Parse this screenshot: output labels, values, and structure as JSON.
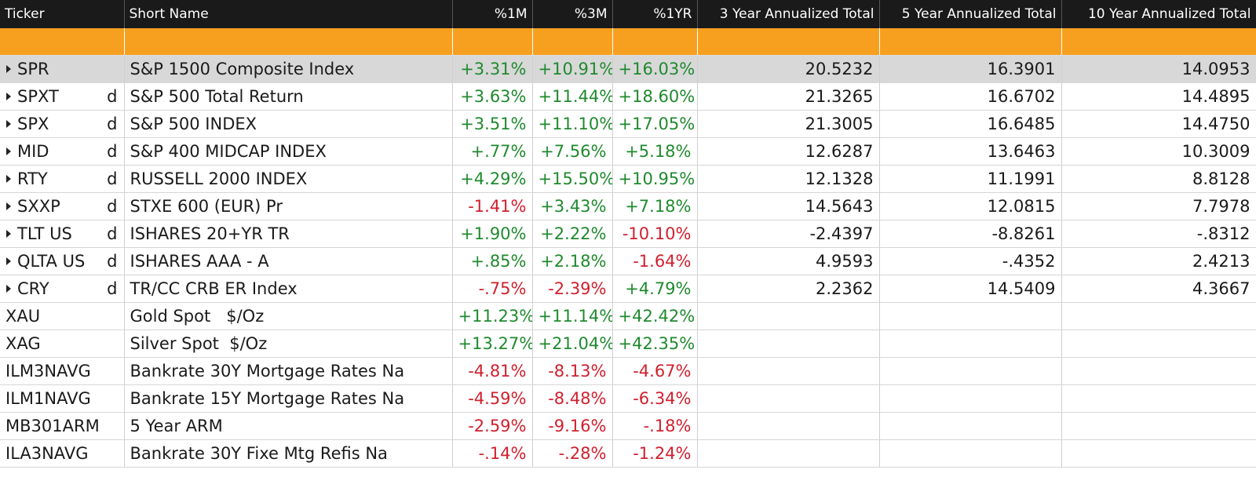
{
  "headers": [
    "Ticker",
    "Short Name",
    "%1M",
    "%3M",
    "%1YR",
    "3 Year Annualized Total",
    "5 Year Annualized Total",
    "10 Year Annualized Total"
  ],
  "rows": [
    {
      "ticker": "SPR",
      "flag": "",
      "expandable": true,
      "selected": true,
      "name": "S&P 1500 Composite Index",
      "m1": "+3.31%",
      "m3": "+10.91%",
      "yr1": "+16.03%",
      "y3": "20.5232",
      "y5": "16.3901",
      "y10": "14.0953"
    },
    {
      "ticker": "SPXT",
      "flag": "d",
      "expandable": true,
      "selected": false,
      "name": "S&P 500 Total Return",
      "m1": "+3.63%",
      "m3": "+11.44%",
      "yr1": "+18.60%",
      "y3": "21.3265",
      "y5": "16.6702",
      "y10": "14.4895"
    },
    {
      "ticker": "SPX",
      "flag": "d",
      "expandable": true,
      "selected": false,
      "name": "S&P 500 INDEX",
      "m1": "+3.51%",
      "m3": "+11.10%",
      "yr1": "+17.05%",
      "y3": "21.3005",
      "y5": "16.6485",
      "y10": "14.4750"
    },
    {
      "ticker": "MID",
      "flag": "d",
      "expandable": true,
      "selected": false,
      "name": "S&P 400 MIDCAP INDEX",
      "m1": "+.77%",
      "m3": "+7.56%",
      "yr1": "+5.18%",
      "y3": "12.6287",
      "y5": "13.6463",
      "y10": "10.3009"
    },
    {
      "ticker": "RTY",
      "flag": "d",
      "expandable": true,
      "selected": false,
      "name": "RUSSELL 2000 INDEX",
      "m1": "+4.29%",
      "m3": "+15.50%",
      "yr1": "+10.95%",
      "y3": "12.1328",
      "y5": "11.1991",
      "y10": "8.8128"
    },
    {
      "ticker": "SXXP",
      "flag": "d",
      "expandable": true,
      "selected": false,
      "name": "STXE 600 (EUR) Pr",
      "m1": "-1.41%",
      "m3": "+3.43%",
      "yr1": "+7.18%",
      "y3": "14.5643",
      "y5": "12.0815",
      "y10": "7.7978"
    },
    {
      "ticker": "TLT US",
      "flag": "d",
      "expandable": true,
      "selected": false,
      "name": "ISHARES 20+YR TR",
      "m1": "+1.90%",
      "m3": "+2.22%",
      "yr1": "-10.10%",
      "y3": "-2.4397",
      "y5": "-8.8261",
      "y10": "-.8312"
    },
    {
      "ticker": "QLTA US",
      "flag": "d",
      "expandable": true,
      "selected": false,
      "name": "ISHARES AAA - A",
      "m1": "+.85%",
      "m3": "+2.18%",
      "yr1": "-1.64%",
      "y3": "4.9593",
      "y5": "-.4352",
      "y10": "2.4213"
    },
    {
      "ticker": "CRY",
      "flag": "d",
      "expandable": true,
      "selected": false,
      "name": "TR/CC CRB ER Index",
      "m1": "-.75%",
      "m3": "-2.39%",
      "yr1": "+4.79%",
      "y3": "2.2362",
      "y5": "14.5409",
      "y10": "4.3667"
    },
    {
      "ticker": "XAU",
      "flag": "",
      "expandable": false,
      "selected": false,
      "name": "Gold Spot   $/Oz",
      "m1": "+11.23%",
      "m3": "+11.14%",
      "yr1": "+42.42%",
      "y3": "",
      "y5": "",
      "y10": ""
    },
    {
      "ticker": "XAG",
      "flag": "",
      "expandable": false,
      "selected": false,
      "name": "Silver Spot  $/Oz",
      "m1": "+13.27%",
      "m3": "+21.04%",
      "yr1": "+42.35%",
      "y3": "",
      "y5": "",
      "y10": ""
    },
    {
      "ticker": "ILM3NAVG",
      "flag": "",
      "expandable": false,
      "selected": false,
      "name": "Bankrate 30Y Mortgage Rates Na",
      "m1": "-4.81%",
      "m3": "-8.13%",
      "yr1": "-4.67%",
      "y3": "",
      "y5": "",
      "y10": ""
    },
    {
      "ticker": "ILM1NAVG",
      "flag": "",
      "expandable": false,
      "selected": false,
      "name": "Bankrate 15Y Mortgage Rates Na",
      "m1": "-4.59%",
      "m3": "-8.48%",
      "yr1": "-6.34%",
      "y3": "",
      "y5": "",
      "y10": ""
    },
    {
      "ticker": "MB301ARM",
      "flag": "",
      "expandable": false,
      "selected": false,
      "name": "5 Year ARM",
      "m1": "-2.59%",
      "m3": "-9.16%",
      "yr1": "-.18%",
      "y3": "",
      "y5": "",
      "y10": ""
    },
    {
      "ticker": "ILA3NAVG",
      "flag": "",
      "expandable": false,
      "selected": false,
      "name": "Bankrate 30Y Fixe Mtg Refis Na",
      "m1": "-.14%",
      "m3": "-.28%",
      "yr1": "-1.24%",
      "y3": "",
      "y5": "",
      "y10": ""
    }
  ],
  "colors": {
    "header_bg": "#1a1a1a",
    "filter_row": "#f7a020",
    "selected_row": "#d8d8d8",
    "positive": "#1f8a2e",
    "negative": "#d0202e"
  }
}
